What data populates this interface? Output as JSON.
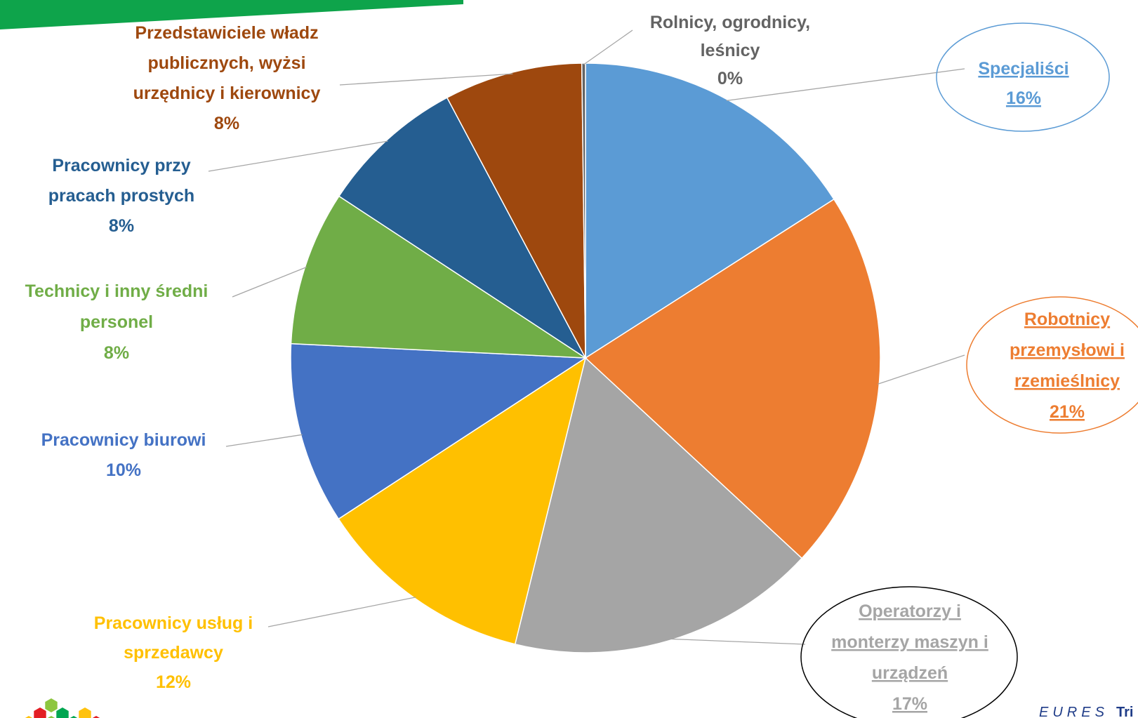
{
  "chart_data": {
    "type": "pie",
    "slices": [
      {
        "label_lines": [
          "Specjaliści",
          "16%"
        ],
        "value": 16,
        "color": "#5B9BD5",
        "text_color": "#5B9BD5",
        "underline": true,
        "callout": "ellipse",
        "callout_color": "#5B9BD5"
      },
      {
        "label_lines": [
          "Robotnicy",
          "przemysłowi i",
          "rzemieślnicy",
          "21%"
        ],
        "value": 21,
        "color": "#ED7D31",
        "text_color": "#ED7D31",
        "underline": true,
        "callout": "ellipse",
        "callout_color": "#ED7D31"
      },
      {
        "label_lines": [
          "Operatorzy i",
          "monterzy maszyn i",
          "urządzeń",
          "17%"
        ],
        "value": 17,
        "color": "#A5A5A5",
        "text_color": "#A5A5A5",
        "underline": true,
        "callout": "ellipse",
        "callout_color": "#000000"
      },
      {
        "label_lines": [
          "Pracownicy usług i",
          "sprzedawcy",
          "12%"
        ],
        "value": 12,
        "color": "#FFC000",
        "text_color": "#FFC000"
      },
      {
        "label_lines": [
          "Pracownicy biurowi",
          "10%"
        ],
        "value": 10,
        "color": "#4472C4",
        "text_color": "#4472C4"
      },
      {
        "label_lines": [
          "Technicy i inny średni",
          "personel",
          "8%"
        ],
        "value": 8.5,
        "color": "#70AD47",
        "text_color": "#70AD47"
      },
      {
        "label_lines": [
          "Pracownicy przy",
          "pracach prostych",
          "8%"
        ],
        "value": 8,
        "color": "#255E91",
        "text_color": "#255E91"
      },
      {
        "label_lines": [
          "Przedstawiciele władz",
          "publicznych, wyżsi",
          "urzędnicy i kierownicy",
          "8%"
        ],
        "value": 7.6,
        "color": "#9E480E",
        "text_color": "#9E480E"
      },
      {
        "label_lines": [
          "Rolnicy, ogrodnicy,",
          "leśnicy",
          "0%"
        ],
        "value": 0.2,
        "color": "#636363",
        "text_color": "#636363"
      }
    ]
  },
  "footer": {
    "brand_text": "EURES",
    "brand_text_2": "Tri"
  },
  "colors": {
    "header_bar": "#0EA44B",
    "logo_cells": [
      "#8DC63F",
      "#E31E24",
      "#00A651",
      "#FFC20E"
    ]
  }
}
